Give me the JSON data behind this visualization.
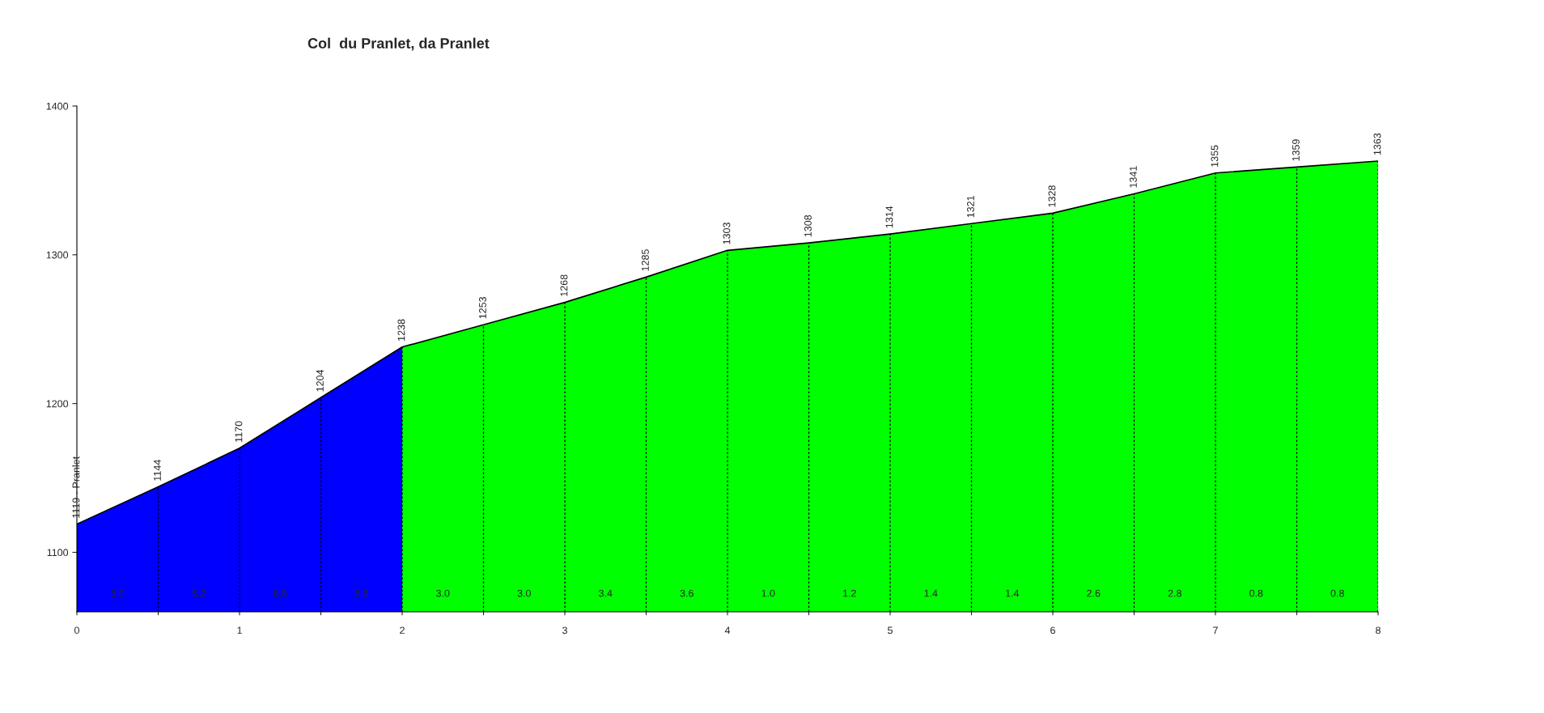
{
  "chart_data": {
    "type": "area",
    "title": "Col  du Pranlet, da Pranlet",
    "xlim": [
      0,
      8
    ],
    "xticks": [
      0,
      {
        "value": 0.5,
        "label": null
      },
      1,
      {
        "value": 1.5,
        "label": null
      },
      2,
      {
        "value": 2.5,
        "label": null
      },
      3,
      {
        "value": 3.5,
        "label": null
      },
      4,
      {
        "value": 4.5,
        "label": null
      },
      5,
      {
        "value": 5.5,
        "label": null
      },
      6,
      {
        "value": 6.5,
        "label": null
      },
      7,
      {
        "value": 7.5,
        "label": null
      },
      8
    ],
    "ylim": [
      1060,
      1400
    ],
    "yticks": [
      1100,
      1200,
      1300,
      1400
    ],
    "grid": "x",
    "line_style": "solid",
    "series": [
      {
        "color": "#0000ff",
        "x": [
          0,
          0.5,
          1,
          1.5,
          2
        ],
        "values": [
          1119,
          1144,
          1170,
          1204,
          1238
        ],
        "value_labels": [
          "1119 - Pranlet",
          "1144",
          "1170",
          "1204",
          "1238"
        ]
      },
      {
        "color": "#00ff00",
        "x": [
          2,
          2.5,
          3,
          3.5,
          4,
          4.5,
          5,
          5.5,
          6,
          6.5,
          7,
          7.5,
          8
        ],
        "values": [
          1238,
          1253,
          1268,
          1285,
          1303,
          1308,
          1314,
          1321,
          1328,
          1341,
          1355,
          1359,
          1363
        ],
        "value_labels": [
          null,
          "1253",
          "1268",
          "1285",
          "1303",
          "1308",
          "1314",
          "1321",
          "1328",
          "1341",
          "1355",
          "1359",
          "1363"
        ]
      }
    ],
    "annotations": [
      "5.0",
      "5.2",
      "6.8",
      "6.8",
      "3.0",
      "3.0",
      "3.4",
      "3.6",
      "1.0",
      "1.2",
      "1.4",
      "1.4",
      "2.6",
      "2.8",
      "0.8",
      "0.8"
    ]
  }
}
